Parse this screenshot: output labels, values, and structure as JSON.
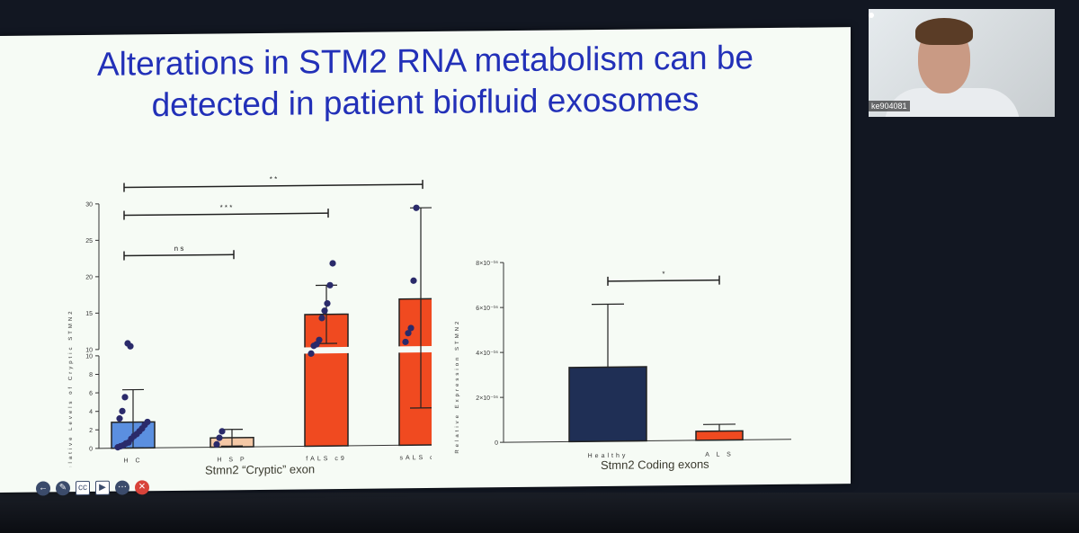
{
  "slide": {
    "title_line1": "Alterations in STM2 RNA metabolism can be",
    "title_line2": "detected in patient biofluid exosomes"
  },
  "webcam": {
    "label": "ke904081"
  },
  "chart_data": [
    {
      "type": "bar",
      "caption": "Stmn2 “Cryptic” exon",
      "ylabel": "Relative Levels of Cryptic STMN2",
      "axis_break": [
        10,
        10
      ],
      "yticks_lower": [
        0,
        2,
        4,
        6,
        8,
        10
      ],
      "yticks_upper": [
        10,
        15,
        20,
        25,
        30
      ],
      "categories": [
        "H C",
        "H S P",
        "fALS c9",
        "sALS c9"
      ],
      "values": [
        2.8,
        1.0,
        14.5,
        16.5
      ],
      "error": [
        3.5,
        0.9,
        4.0,
        12.5
      ],
      "colors": [
        "#5b8fe0",
        "#f4c8a6",
        "#f04a20",
        "#f04a20"
      ],
      "points": [
        [
          0.1,
          0.2,
          0.3,
          0.5,
          0.6,
          1.0,
          1.3,
          1.5,
          1.8,
          2.1,
          2.5,
          2.8,
          3.2,
          4.0,
          5.5,
          10.8,
          10.4
        ],
        [
          0.3,
          1.0,
          1.7
        ],
        [
          10.0,
          10.2,
          10.4,
          11.0,
          14.0,
          15.0,
          16.0,
          18.5,
          21.5
        ],
        [
          10.6,
          11.8,
          12.5,
          19.0,
          29.0
        ]
      ],
      "significance": [
        {
          "from": 0,
          "to": 1,
          "label": "n s"
        },
        {
          "from": 0,
          "to": 2,
          "label": "* * *"
        },
        {
          "from": 0,
          "to": 3,
          "label": "* *"
        }
      ]
    },
    {
      "type": "bar",
      "caption": "Stmn2 Coding exons",
      "ylabel": "Relative Expression STMN2",
      "ylim": [
        0,
        8
      ],
      "yticks": [
        0,
        2,
        4,
        6,
        8
      ],
      "ytick_labels": [
        "0",
        "2×10⁻¹⁶",
        "4×10⁻¹⁶",
        "6×10⁻¹⁶",
        "8×10⁻¹⁶"
      ],
      "categories": [
        "Healthy",
        "A L S"
      ],
      "values": [
        3.3,
        0.4
      ],
      "error": [
        2.8,
        0.3
      ],
      "colors": [
        "#1f2f55",
        "#f04a20"
      ],
      "significance": [
        {
          "from": 0,
          "to": 1,
          "label": "*"
        }
      ]
    }
  ],
  "toolbar": {
    "icons": [
      "back-arrow-icon",
      "pen-icon",
      "cc-icon",
      "video-off-icon",
      "more-icon",
      "close-icon"
    ]
  }
}
